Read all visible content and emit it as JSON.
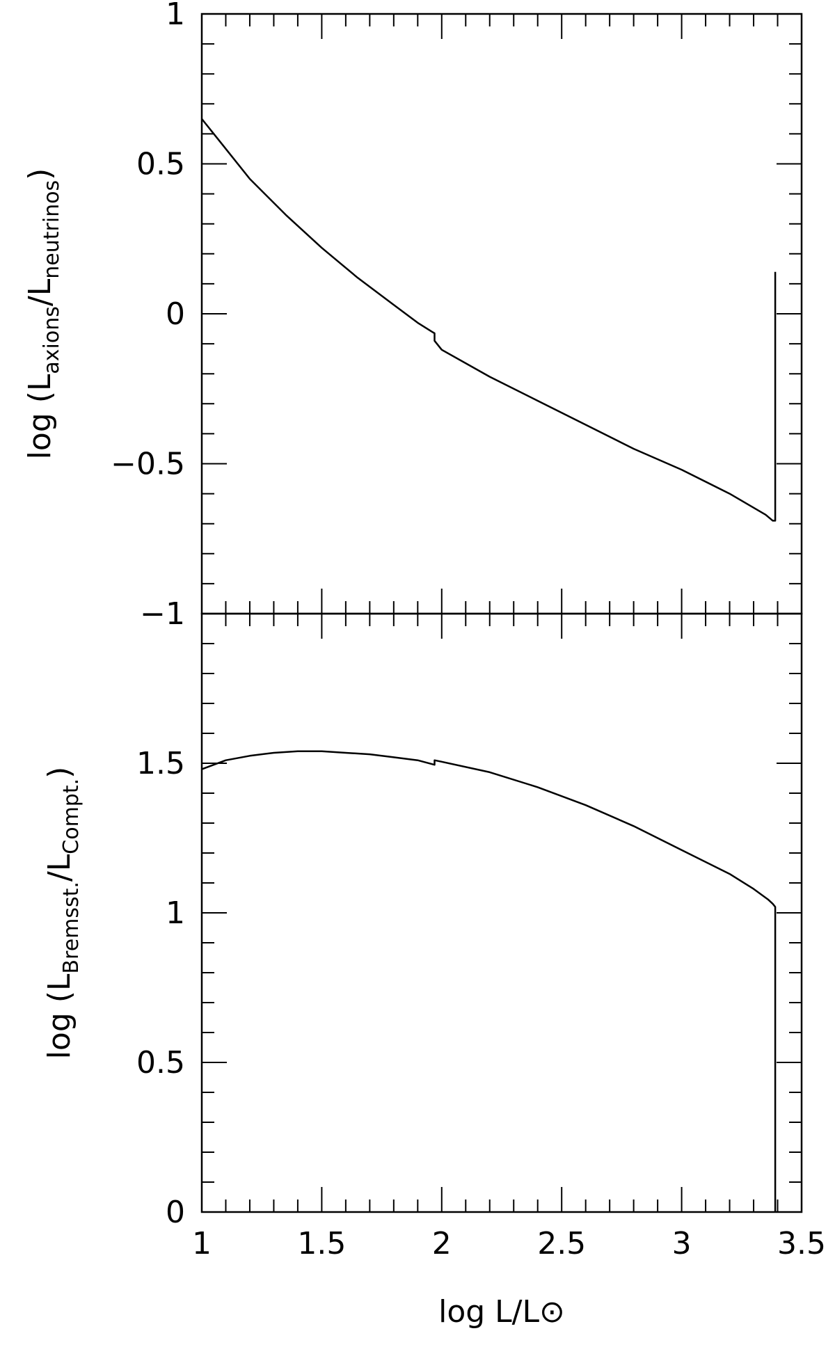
{
  "chart_data": [
    {
      "type": "line",
      "title": "",
      "xlabel": "log L/L⊙",
      "ylabel": {
        "prefix": "log (L",
        "num_sub": "axions",
        "mid": "/L",
        "den_sub": "neutrinos",
        "suffix": ")"
      },
      "xlim": [
        1,
        3.5
      ],
      "ylim": [
        -1,
        1
      ],
      "x_ticks": [
        1,
        1.5,
        2,
        2.5,
        3,
        3.5
      ],
      "x_tick_labels": [
        "1",
        "1.5",
        "2",
        "2.5",
        "3",
        "3.5"
      ],
      "x_tick_labels_shown": false,
      "y_ticks": [
        -1,
        -0.5,
        0,
        0.5,
        1
      ],
      "y_tick_labels": [
        "−1",
        "−0.5",
        "0",
        "0.5",
        "1"
      ],
      "grid": false,
      "series": [
        {
          "x": [
            1.0,
            1.08,
            1.2,
            1.35,
            1.5,
            1.65,
            1.8,
            1.9,
            1.96,
            1.97,
            1.97,
            2.0,
            2.2,
            2.4,
            2.6,
            2.8,
            3.0,
            3.2,
            3.35,
            3.38,
            3.39,
            3.39
          ],
          "y": [
            0.65,
            0.57,
            0.45,
            0.33,
            0.22,
            0.12,
            0.03,
            -0.03,
            -0.06,
            -0.065,
            -0.09,
            -0.12,
            -0.21,
            -0.29,
            -0.37,
            -0.45,
            -0.52,
            -0.6,
            -0.67,
            -0.69,
            -0.69,
            0.14
          ]
        }
      ]
    },
    {
      "type": "line",
      "title": "",
      "xlabel": "log L/L⊙",
      "ylabel": {
        "prefix": "log (L",
        "num_sub": "Bremsst.",
        "mid": "/L",
        "den_sub": "Compt.",
        "suffix": ")"
      },
      "xlim": [
        1,
        3.5
      ],
      "ylim": [
        0,
        2
      ],
      "x_ticks": [
        1,
        1.5,
        2,
        2.5,
        3,
        3.5
      ],
      "x_tick_labels": [
        "1",
        "1.5",
        "2",
        "2.5",
        "3",
        "3.5"
      ],
      "x_tick_labels_shown": true,
      "y_ticks": [
        0,
        0.5,
        1,
        1.5,
        2
      ],
      "y_tick_labels": [
        "0",
        "0.5",
        "1",
        "1.5",
        ""
      ],
      "grid": false,
      "series": [
        {
          "x": [
            1.0,
            1.1,
            1.2,
            1.3,
            1.4,
            1.5,
            1.6,
            1.7,
            1.8,
            1.9,
            1.97,
            1.97,
            2.0,
            2.2,
            2.4,
            2.6,
            2.8,
            3.0,
            3.2,
            3.3,
            3.36,
            3.38,
            3.39,
            3.39
          ],
          "y": [
            1.48,
            1.51,
            1.525,
            1.535,
            1.54,
            1.54,
            1.535,
            1.53,
            1.52,
            1.51,
            1.495,
            1.51,
            1.505,
            1.47,
            1.42,
            1.36,
            1.29,
            1.21,
            1.13,
            1.08,
            1.045,
            1.03,
            1.02,
            0.0
          ]
        }
      ]
    }
  ]
}
